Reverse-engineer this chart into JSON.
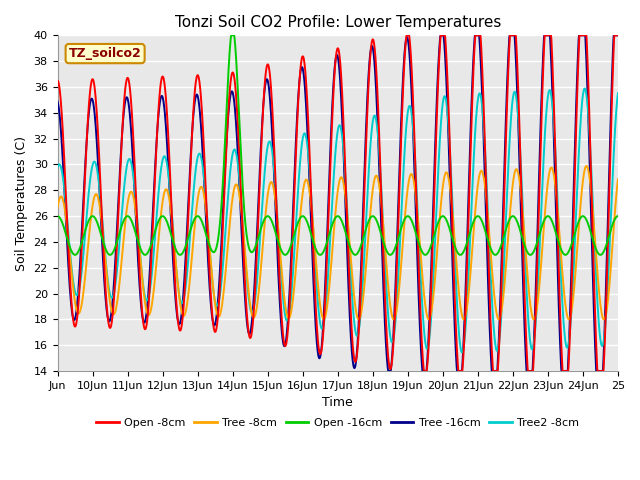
{
  "title": "Tonzi Soil CO2 Profile: Lower Temperatures",
  "xlabel": "Time",
  "ylabel": "Soil Temperatures (C)",
  "ylim": [
    14,
    40
  ],
  "yticks": [
    14,
    16,
    18,
    20,
    22,
    24,
    26,
    28,
    30,
    32,
    34,
    36,
    38,
    40
  ],
  "watermark_text": "TZ_soilco2",
  "lines": {
    "Open -8cm": {
      "color": "#ff0000",
      "lw": 1.4
    },
    "Tree -8cm": {
      "color": "#ffa500",
      "lw": 1.4
    },
    "Open -16cm": {
      "color": "#00cc00",
      "lw": 1.4
    },
    "Tree -16cm": {
      "color": "#00008b",
      "lw": 1.4
    },
    "Tree2 -8cm": {
      "color": "#00cccc",
      "lw": 1.4
    }
  },
  "x_start": 9.0,
  "x_end": 25.0,
  "xtick_labels": [
    "Jun",
    "10Jun",
    "11Jun",
    "12Jun",
    "13Jun",
    "14Jun",
    "15Jun",
    "16Jun",
    "17Jun",
    "18Jun",
    "19Jun",
    "20Jun",
    "21Jun",
    "22Jun",
    "23Jun",
    "24Jun",
    "25"
  ],
  "xtick_positions": [
    9.0,
    10.0,
    11.0,
    12.0,
    13.0,
    14.0,
    15.0,
    16.0,
    17.0,
    18.0,
    19.0,
    20.0,
    21.0,
    22.0,
    23.0,
    24.0,
    25.0
  ],
  "figsize": [
    6.4,
    4.8
  ],
  "dpi": 100
}
